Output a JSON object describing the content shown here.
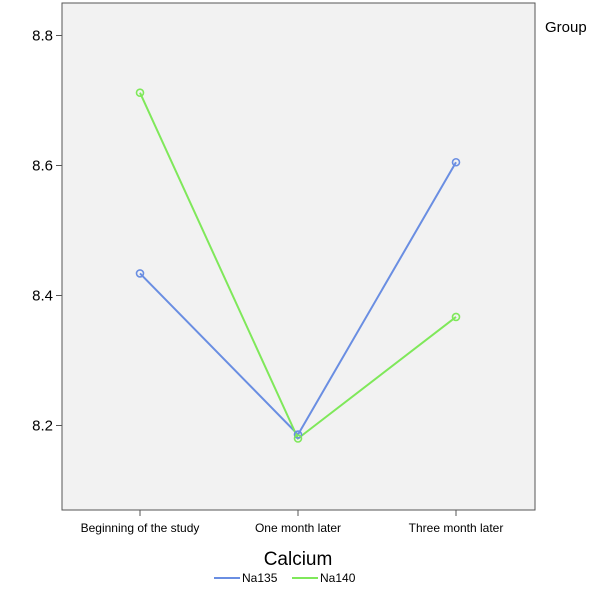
{
  "chart_data": {
    "type": "line",
    "title": "",
    "xlabel": "Calcium",
    "ylabel": "",
    "categories": [
      "Beginning of the study",
      "One month later",
      "Three month later"
    ],
    "series": [
      {
        "name": "Na135",
        "values": [
          8.434,
          8.186,
          8.605
        ],
        "color": "#6a8ee2"
      },
      {
        "name": "Na140",
        "values": [
          8.712,
          8.18,
          8.367
        ],
        "color": "#7fe85a"
      }
    ],
    "ylim": [
      8.07,
      8.85
    ],
    "yticks": [
      8.2,
      8.4,
      8.6,
      8.8
    ],
    "y_tick_labels": [
      "8.2",
      "8.4",
      "8.6",
      "8.8"
    ],
    "legend_title": "Group",
    "legend_entries": [
      "Na135",
      "Na140"
    ],
    "legend_position": "top-right title, entries bottom-center",
    "grid": false,
    "plot_background": "#f2f2f2",
    "axis_color": "#555555",
    "markers": "open circles"
  }
}
